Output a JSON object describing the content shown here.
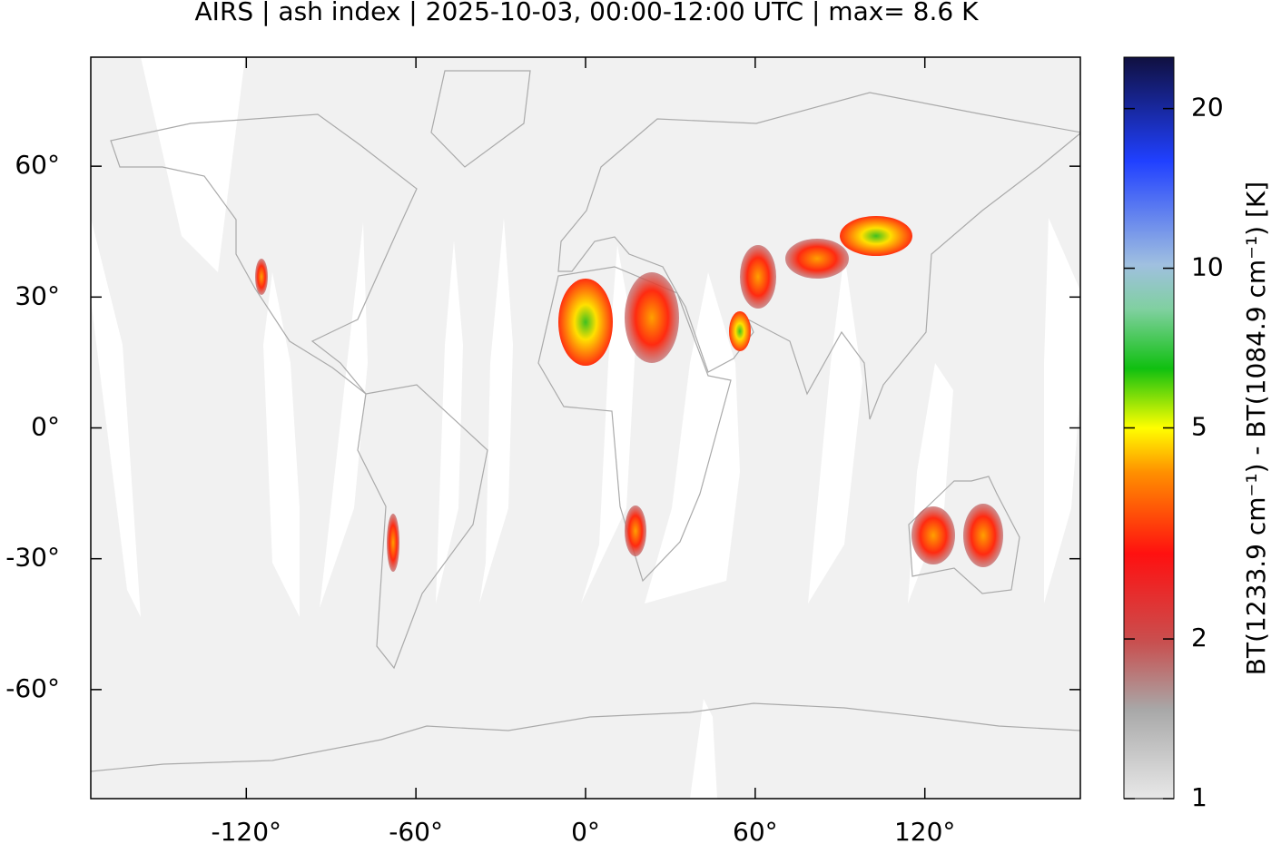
{
  "chart_data": {
    "type": "map",
    "title": "AIRS | ash index | 2025-10-03, 00:00-12:00 UTC | max= 8.6 K",
    "xlim": [
      -175,
      175
    ],
    "ylim": [
      -85,
      85
    ],
    "xticks": [
      {
        "value": -120,
        "label": "-120°"
      },
      {
        "value": -60,
        "label": "-60°"
      },
      {
        "value": 0,
        "label": "0°"
      },
      {
        "value": 60,
        "label": "60°"
      },
      {
        "value": 120,
        "label": "120°"
      }
    ],
    "yticks": [
      {
        "value": -60,
        "label": "-60°"
      },
      {
        "value": -30,
        "label": "-30°"
      },
      {
        "value": 0,
        "label": "0°"
      },
      {
        "value": 30,
        "label": "30°"
      },
      {
        "value": 60,
        "label": "60°"
      }
    ],
    "colorbar": {
      "label": "BT(1233.9 cm⁻¹) - BT(1084.9 cm⁻¹) [K]",
      "lim": [
        1,
        25
      ],
      "log": true,
      "ticks": [
        1,
        2,
        5,
        10,
        20
      ]
    }
  }
}
